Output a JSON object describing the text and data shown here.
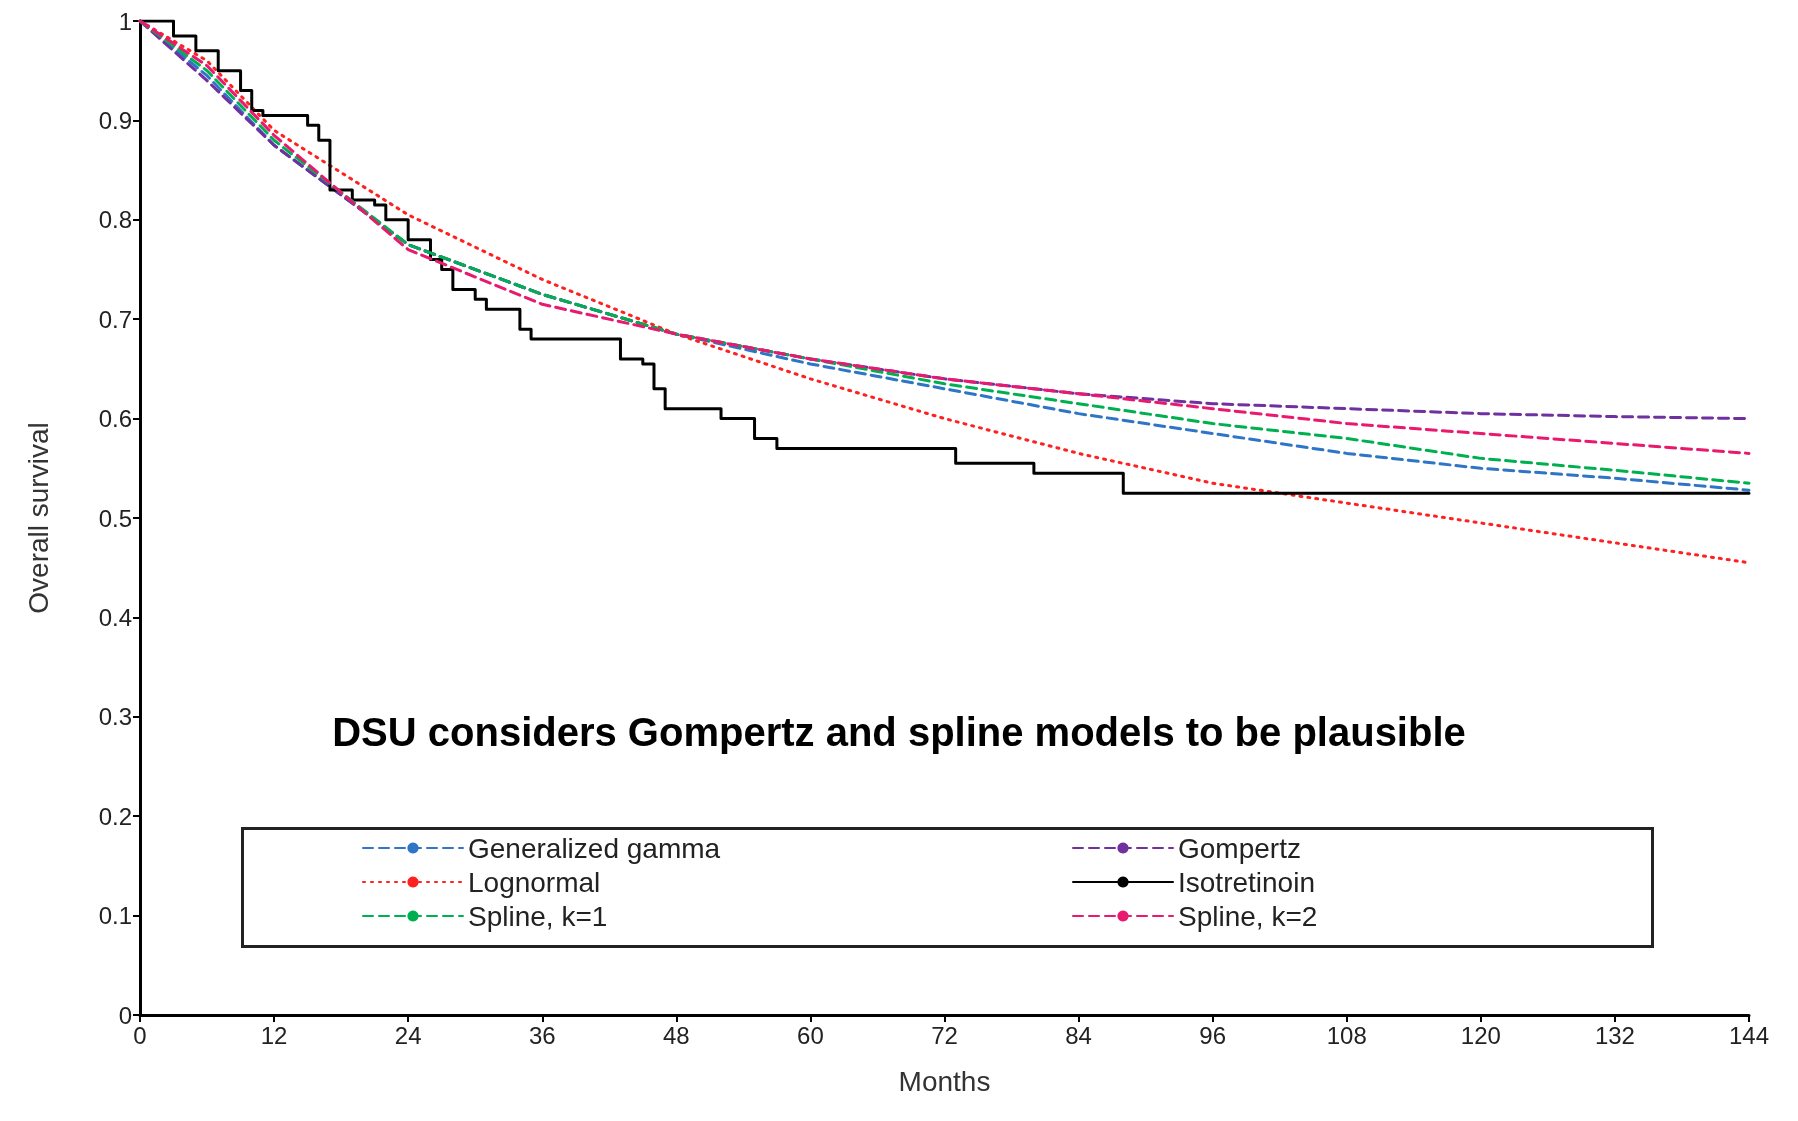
{
  "chart_data": {
    "type": "line",
    "xlabel": "Months",
    "ylabel": "Overall survival",
    "annotations": [
      "DSU considers Gompertz and spline models to be plausible"
    ],
    "xlim": [
      0,
      144
    ],
    "xticks": [
      0,
      12,
      24,
      36,
      48,
      60,
      72,
      84,
      96,
      108,
      120,
      132,
      144
    ],
    "ylim": [
      0,
      1
    ],
    "yticks": [
      0,
      0.1,
      0.2,
      0.3,
      0.4,
      0.5,
      0.6,
      0.7,
      0.8,
      0.9,
      1
    ],
    "grid": false,
    "legend": "bottom",
    "marker": "none",
    "series": [
      {
        "name": "Generalized gamma",
        "color": "#2e75c8",
        "line_style": "dashed",
        "x": [
          0,
          6,
          12,
          24,
          36,
          48,
          60,
          72,
          84,
          96,
          108,
          120,
          132,
          144
        ],
        "values": [
          1,
          0.945,
          0.875,
          0.775,
          0.725,
          0.685,
          0.655,
          0.63,
          0.605,
          0.585,
          0.565,
          0.55,
          0.54,
          0.528
        ]
      },
      {
        "name": "Gompertz",
        "color": "#7030a0",
        "line_style": "dashed",
        "x": [
          0,
          6,
          12,
          24,
          36,
          48,
          60,
          72,
          84,
          96,
          108,
          120,
          132,
          144
        ],
        "values": [
          1,
          0.94,
          0.875,
          0.775,
          0.725,
          0.685,
          0.66,
          0.64,
          0.625,
          0.615,
          0.61,
          0.605,
          0.602,
          0.6
        ]
      },
      {
        "name": "Lognormal",
        "color": "#ff2020",
        "line_style": "dotted",
        "x": [
          0,
          6,
          12,
          24,
          36,
          48,
          60,
          72,
          84,
          96,
          108,
          120,
          132,
          144
        ],
        "values": [
          1,
          0.96,
          0.89,
          0.805,
          0.74,
          0.685,
          0.64,
          0.6,
          0.565,
          0.535,
          0.515,
          0.495,
          0.475,
          0.455
        ]
      },
      {
        "name": "Isotretinoin",
        "color": "#000000",
        "line_style": "solid",
        "type": "step",
        "x": [
          0,
          3,
          5,
          7,
          9,
          10,
          11,
          15,
          16,
          17,
          19,
          21,
          22,
          24,
          26,
          27,
          28,
          30,
          31,
          34,
          35,
          43,
          45,
          46,
          47,
          52,
          55,
          57,
          73,
          80,
          88,
          144
        ],
        "values": [
          1,
          0.985,
          0.97,
          0.95,
          0.93,
          0.91,
          0.905,
          0.895,
          0.88,
          0.83,
          0.82,
          0.815,
          0.8,
          0.78,
          0.76,
          0.75,
          0.73,
          0.72,
          0.71,
          0.69,
          0.68,
          0.66,
          0.655,
          0.63,
          0.61,
          0.6,
          0.58,
          0.57,
          0.555,
          0.545,
          0.525,
          0.525
        ]
      },
      {
        "name": "Spline, k=1",
        "color": "#00b050",
        "line_style": "dashed",
        "x": [
          0,
          6,
          12,
          24,
          36,
          48,
          60,
          72,
          84,
          96,
          108,
          120,
          132,
          144
        ],
        "values": [
          1,
          0.95,
          0.88,
          0.775,
          0.725,
          0.685,
          0.66,
          0.635,
          0.615,
          0.595,
          0.58,
          0.56,
          0.548,
          0.535
        ]
      },
      {
        "name": "Spline, k=2",
        "color": "#e8196e",
        "line_style": "dashed",
        "x": [
          0,
          6,
          12,
          24,
          36,
          48,
          60,
          72,
          84,
          96,
          108,
          120,
          132,
          144
        ],
        "values": [
          1,
          0.955,
          0.885,
          0.77,
          0.715,
          0.685,
          0.66,
          0.64,
          0.625,
          0.61,
          0.595,
          0.585,
          0.575,
          0.565
        ]
      }
    ]
  }
}
